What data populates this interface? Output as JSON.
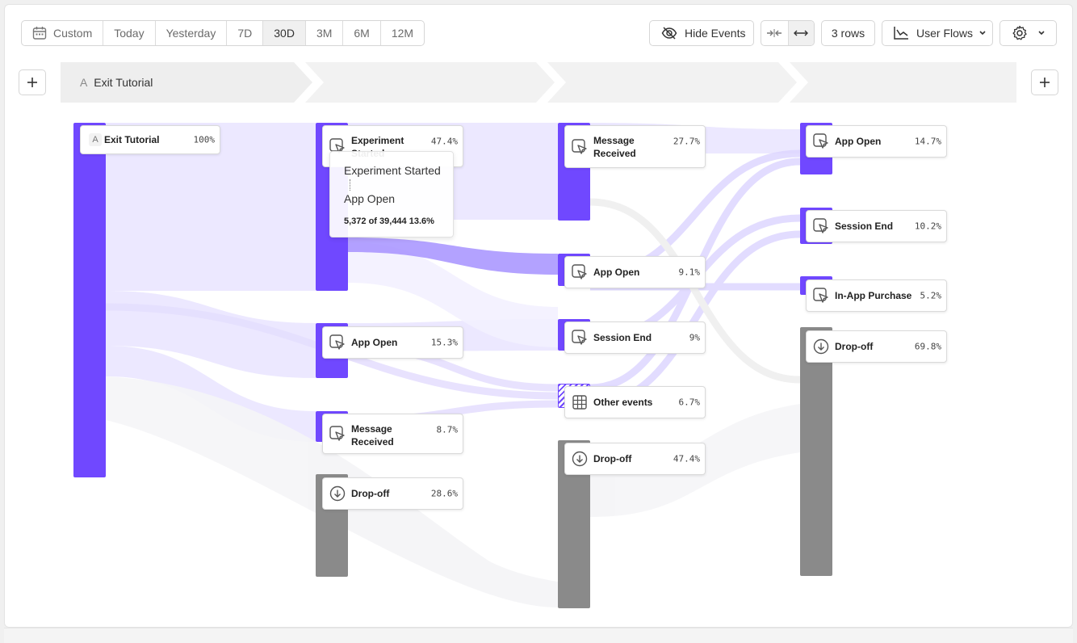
{
  "toolbar": {
    "date_ranges": [
      {
        "label": "Custom",
        "icon": "calendar-icon",
        "active": false
      },
      {
        "label": "Today",
        "active": false
      },
      {
        "label": "Yesterday",
        "active": false
      },
      {
        "label": "7D",
        "active": false
      },
      {
        "label": "30D",
        "active": true
      },
      {
        "label": "3M",
        "active": false
      },
      {
        "label": "6M",
        "active": false
      },
      {
        "label": "12M",
        "active": false
      }
    ],
    "hide_events_label": "Hide Events",
    "rows_label": "3 rows",
    "report_type_label": "User Flows"
  },
  "steps": [
    {
      "letter": "A",
      "label": "Exit Tutorial"
    }
  ],
  "colors": {
    "accent": "#7048ff",
    "dropoff": "#8a8a8a",
    "flow": "#d9d1ff",
    "flow_highlight": "#a692ff"
  },
  "columns": [
    {
      "nodes": [
        {
          "name": "Exit Tutorial",
          "pct": "100%",
          "icon": "letter",
          "letter": "A"
        }
      ]
    },
    {
      "nodes": [
        {
          "name": "Experiment Started",
          "pct": "47.4%",
          "icon": "cursor-click-icon"
        },
        {
          "name": "App Open",
          "pct": "15.3%",
          "icon": "cursor-click-icon"
        },
        {
          "name": "Message Received",
          "pct": "8.7%",
          "icon": "cursor-click-icon"
        },
        {
          "name": "Drop-off",
          "pct": "28.6%",
          "icon": "arrow-down-circle-icon"
        }
      ]
    },
    {
      "nodes": [
        {
          "name": "Message Received",
          "pct": "27.7%",
          "icon": "cursor-click-icon"
        },
        {
          "name": "App Open",
          "pct": "9.1%",
          "icon": "cursor-click-icon"
        },
        {
          "name": "Session End",
          "pct": "9%",
          "icon": "cursor-click-icon"
        },
        {
          "name": "Other events",
          "pct": "6.7%",
          "icon": "grid-icon"
        },
        {
          "name": "Drop-off",
          "pct": "47.4%",
          "icon": "arrow-down-circle-icon"
        }
      ]
    },
    {
      "nodes": [
        {
          "name": "App Open",
          "pct": "14.7%",
          "icon": "cursor-click-icon"
        },
        {
          "name": "Session End",
          "pct": "10.2%",
          "icon": "cursor-click-icon"
        },
        {
          "name": "In-App Purchase",
          "pct": "5.2%",
          "icon": "cursor-click-icon"
        },
        {
          "name": "Drop-off",
          "pct": "69.8%",
          "icon": "arrow-down-circle-icon"
        }
      ]
    }
  ],
  "tooltip": {
    "from": "Experiment Started",
    "to": "App Open",
    "stats": "5,372 of 39,444 13.6%"
  }
}
